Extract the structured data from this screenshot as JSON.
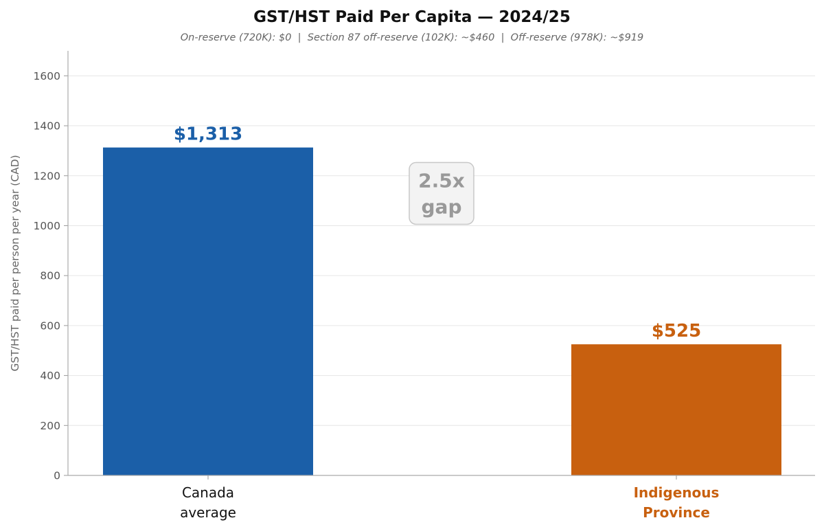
{
  "chart_data": {
    "type": "bar",
    "title": "GST/HST Paid Per Capita — 2024/25",
    "subtitle": "On-reserve (720K): $0  |  Section 87 off-reserve (102K): ~$460  |  Off-reserve (978K): ~$919",
    "xlabel": "",
    "ylabel": "GST/HST paid per person per year (CAD)",
    "ylim": [
      0,
      1700
    ],
    "yticks": [
      0,
      200,
      400,
      600,
      800,
      1000,
      1200,
      1400,
      1600
    ],
    "grid": true,
    "categories": [
      {
        "label_lines": [
          "Canada",
          "average"
        ],
        "value": 1313,
        "value_label": "$1,313",
        "bar_color": "#1b5fa8",
        "label_color": "#1b5fa8",
        "tick_color": "#111111",
        "tick_bold": false
      },
      {
        "label_lines": [
          "Indigenous",
          "Province"
        ],
        "value": 525,
        "value_label": "$525",
        "bar_color": "#c8600f",
        "label_color": "#c8600f",
        "tick_color": "#c8600f",
        "tick_bold": true
      }
    ],
    "annotation": {
      "lines": [
        "2.5x",
        "gap"
      ],
      "at_value": 1000
    }
  }
}
